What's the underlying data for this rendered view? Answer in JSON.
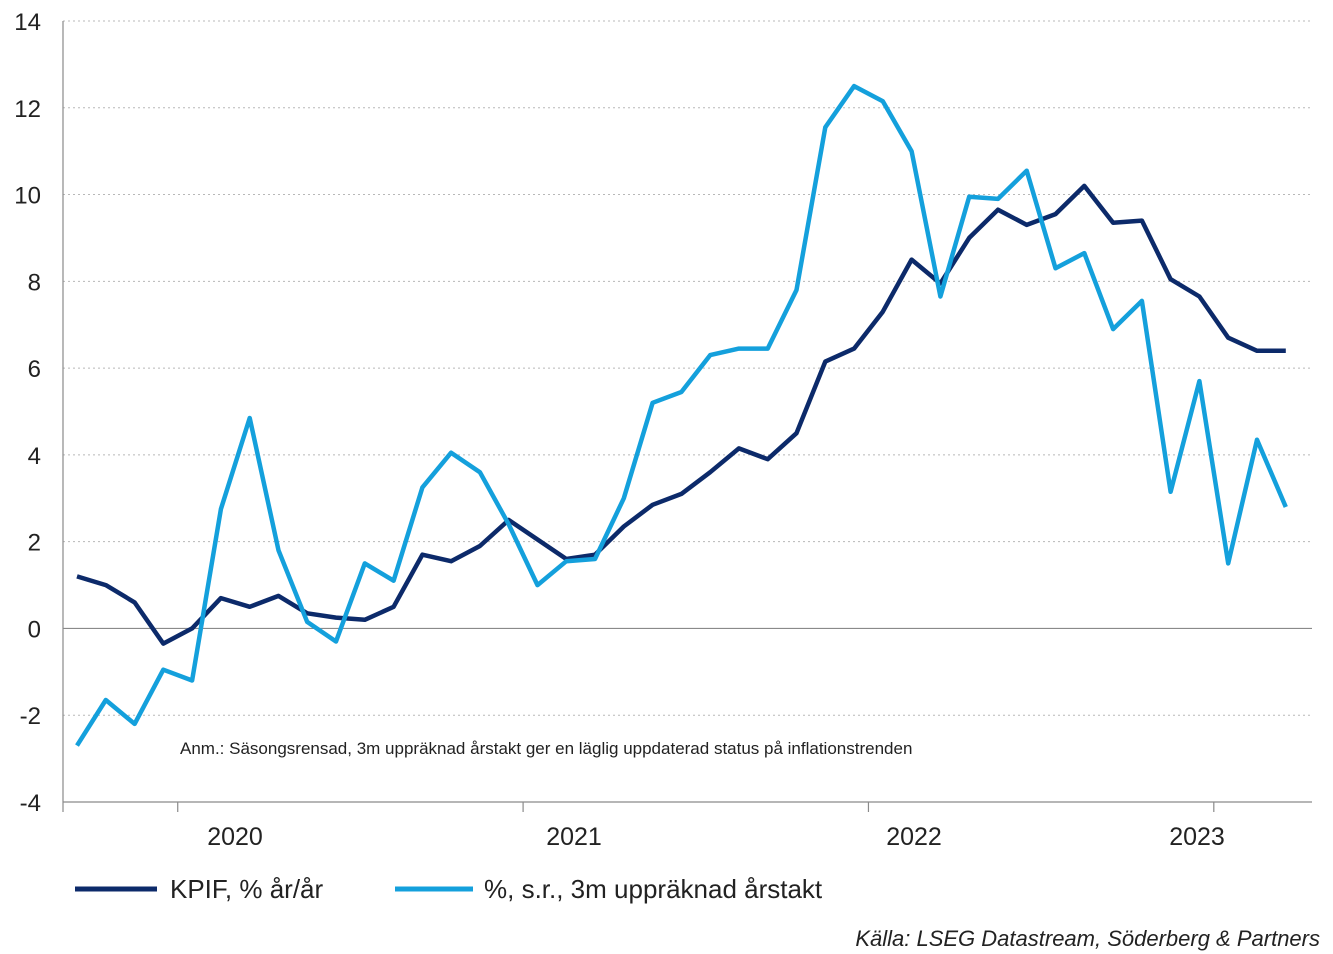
{
  "chart_data": {
    "type": "line",
    "ylim": [
      -4,
      14
    ],
    "yticks": [
      -4,
      -2,
      0,
      2,
      4,
      6,
      8,
      10,
      12,
      14
    ],
    "year_labels": [
      "2020",
      "2021",
      "2022",
      "2023"
    ],
    "annotation": "Anm.: Säsongsrensad, 3m uppräknad årstakt ger en läglig uppdaterad status på inflationstrenden",
    "source": "Källa: LSEG Datastream, Söderberg & Partners",
    "grid": "horizontal dotted",
    "legend_position": "bottom-left",
    "x_start": "2019-09",
    "series": [
      {
        "name": "KPIF, % år/år",
        "color": "#0c2a6a",
        "values": [
          1.2,
          1.0,
          0.6,
          -0.35,
          0.0,
          0.7,
          0.5,
          0.75,
          0.35,
          0.25,
          0.2,
          0.5,
          1.7,
          1.55,
          1.9,
          2.5,
          2.05,
          1.6,
          1.7,
          2.35,
          2.85,
          3.1,
          3.6,
          4.15,
          3.9,
          4.5,
          6.15,
          6.45,
          7.3,
          8.5,
          7.95,
          9.0,
          9.65,
          9.3,
          9.55,
          10.2,
          9.35,
          9.4,
          8.05,
          7.65,
          6.7,
          6.4,
          6.4
        ]
      },
      {
        "name": "%, s.r., 3m uppräknad årstakt",
        "color": "#14a0dc",
        "values": [
          -2.7,
          -1.65,
          -2.2,
          -0.95,
          -1.2,
          2.75,
          4.85,
          1.8,
          0.15,
          -0.3,
          1.5,
          1.1,
          3.25,
          4.05,
          3.6,
          2.4,
          1.0,
          1.55,
          1.6,
          3.0,
          5.2,
          5.45,
          6.3,
          6.45,
          6.45,
          7.8,
          11.55,
          12.5,
          12.15,
          11.0,
          7.65,
          9.95,
          9.9,
          10.55,
          8.3,
          8.65,
          6.9,
          7.55,
          3.15,
          5.7,
          1.5,
          4.35,
          2.8
        ]
      }
    ]
  }
}
